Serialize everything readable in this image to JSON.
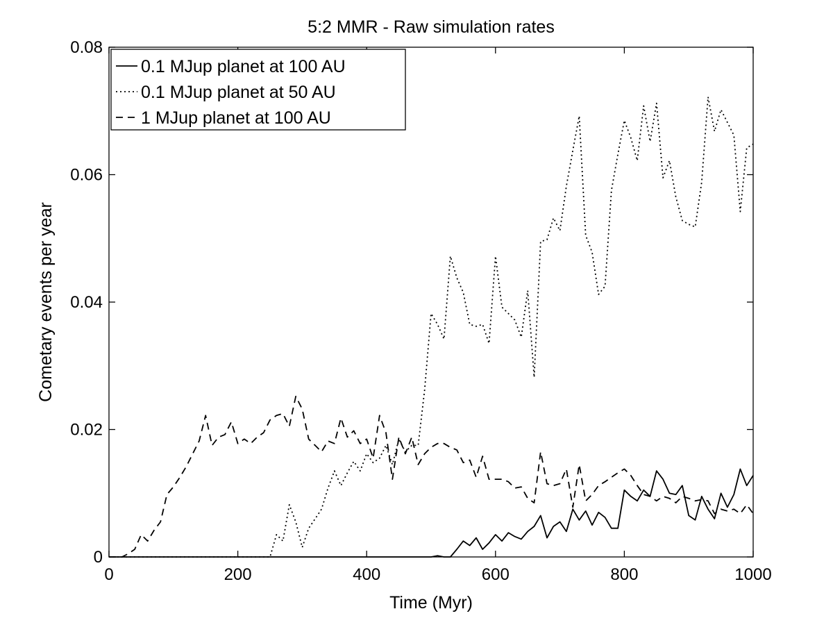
{
  "chart_data": {
    "type": "line",
    "title": "5:2 MMR - Raw simulation rates",
    "xlabel": "Time (Myr)",
    "ylabel": "Cometary events per year",
    "xlim": [
      0,
      1000
    ],
    "ylim": [
      0,
      0.08
    ],
    "xticks": [
      0,
      200,
      400,
      600,
      800,
      1000
    ],
    "xtick_labels": [
      "0",
      "200",
      "400",
      "600",
      "800",
      "1000"
    ],
    "yticks": [
      0,
      0.02,
      0.04,
      0.06,
      0.08
    ],
    "ytick_labels": [
      "0",
      "0.02",
      "0.04",
      "0.06",
      "0.08"
    ],
    "grid": false,
    "legend_position": "top-left",
    "colors": {
      "line": "#000000",
      "background": "#ffffff"
    },
    "series": [
      {
        "name": "0.1 MJup planet at 100 AU",
        "style": "solid",
        "x": [
          0,
          500,
          510,
          520,
          530,
          540,
          550,
          560,
          570,
          580,
          590,
          600,
          610,
          620,
          630,
          640,
          650,
          660,
          670,
          680,
          690,
          700,
          710,
          720,
          730,
          740,
          750,
          760,
          770,
          780,
          790,
          800,
          810,
          820,
          830,
          840,
          850,
          860,
          870,
          880,
          890,
          900,
          910,
          920,
          930,
          940,
          950,
          960,
          970,
          980,
          990,
          1000
        ],
        "values": [
          0,
          0,
          0.0002,
          0,
          0,
          0.0012,
          0.0025,
          0.0018,
          0.003,
          0.0012,
          0.0022,
          0.0035,
          0.0025,
          0.0038,
          0.0032,
          0.0028,
          0.004,
          0.0048,
          0.0065,
          0.003,
          0.0048,
          0.0055,
          0.004,
          0.0075,
          0.0058,
          0.0072,
          0.005,
          0.007,
          0.0062,
          0.0045,
          0.0045,
          0.0105,
          0.0095,
          0.0088,
          0.0105,
          0.0095,
          0.0135,
          0.0122,
          0.01,
          0.0098,
          0.0112,
          0.0065,
          0.0058,
          0.0095,
          0.0075,
          0.006,
          0.01,
          0.0078,
          0.0098,
          0.0138,
          0.0112,
          0.0128
        ]
      },
      {
        "name": "0.1 MJup planet at 50 AU",
        "style": "dotted",
        "x": [
          0,
          250,
          260,
          270,
          280,
          290,
          300,
          310,
          320,
          330,
          340,
          350,
          360,
          370,
          380,
          390,
          400,
          410,
          420,
          430,
          440,
          450,
          460,
          470,
          480,
          490,
          500,
          510,
          520,
          530,
          540,
          550,
          560,
          570,
          580,
          590,
          600,
          610,
          620,
          630,
          640,
          650,
          660,
          670,
          680,
          690,
          700,
          710,
          720,
          730,
          740,
          750,
          760,
          770,
          780,
          790,
          800,
          810,
          820,
          830,
          840,
          850,
          860,
          870,
          880,
          890,
          900,
          910,
          920,
          930,
          940,
          950,
          960,
          970,
          980,
          990,
          1000
        ],
        "values": [
          0,
          0,
          0.0035,
          0.0025,
          0.0082,
          0.0055,
          0.0015,
          0.0045,
          0.006,
          0.0075,
          0.0108,
          0.0135,
          0.0112,
          0.0132,
          0.015,
          0.0135,
          0.0162,
          0.0148,
          0.0155,
          0.0175,
          0.0145,
          0.0185,
          0.0165,
          0.0175,
          0.0175,
          0.0262,
          0.0382,
          0.0365,
          0.0342,
          0.0472,
          0.0438,
          0.0415,
          0.0365,
          0.0362,
          0.0365,
          0.0335,
          0.0472,
          0.0392,
          0.0382,
          0.0372,
          0.0345,
          0.0418,
          0.0282,
          0.0495,
          0.0498,
          0.0532,
          0.0512,
          0.0582,
          0.0638,
          0.0692,
          0.0505,
          0.0478,
          0.0412,
          0.0425,
          0.0575,
          0.0632,
          0.0685,
          0.0658,
          0.0622,
          0.0708,
          0.0652,
          0.0712,
          0.0595,
          0.0622,
          0.0565,
          0.0528,
          0.0522,
          0.0518,
          0.0588,
          0.0722,
          0.0668,
          0.0702,
          0.0682,
          0.0662,
          0.0542,
          0.0642,
          0.0648
        ]
      },
      {
        "name": "1 MJup planet at 100 AU",
        "style": "dashed",
        "x": [
          0,
          20,
          30,
          40,
          50,
          60,
          70,
          80,
          90,
          100,
          110,
          120,
          130,
          140,
          150,
          160,
          170,
          180,
          190,
          200,
          210,
          220,
          230,
          240,
          250,
          260,
          270,
          280,
          290,
          300,
          310,
          320,
          330,
          340,
          350,
          360,
          370,
          380,
          390,
          400,
          410,
          420,
          430,
          440,
          450,
          460,
          470,
          480,
          490,
          500,
          510,
          520,
          530,
          540,
          550,
          560,
          570,
          580,
          590,
          600,
          610,
          620,
          630,
          640,
          650,
          660,
          670,
          680,
          690,
          700,
          710,
          720,
          730,
          740,
          750,
          760,
          770,
          780,
          790,
          800,
          810,
          820,
          830,
          840,
          850,
          860,
          870,
          880,
          890,
          900,
          910,
          920,
          930,
          940,
          950,
          960,
          970,
          980,
          990,
          1000
        ],
        "values": [
          0,
          0,
          0.0005,
          0.0012,
          0.0035,
          0.0025,
          0.0042,
          0.0055,
          0.0098,
          0.011,
          0.0125,
          0.0142,
          0.0162,
          0.0182,
          0.0222,
          0.0175,
          0.0188,
          0.0192,
          0.0212,
          0.0178,
          0.0185,
          0.0178,
          0.0188,
          0.0195,
          0.0215,
          0.0222,
          0.0225,
          0.0205,
          0.0252,
          0.0232,
          0.0185,
          0.0175,
          0.0165,
          0.0182,
          0.0178,
          0.0218,
          0.0188,
          0.0198,
          0.0178,
          0.0185,
          0.0155,
          0.0222,
          0.0195,
          0.0122,
          0.0188,
          0.0162,
          0.0188,
          0.0145,
          0.0162,
          0.0172,
          0.0178,
          0.0178,
          0.0172,
          0.0168,
          0.0148,
          0.0152,
          0.0125,
          0.0158,
          0.0122,
          0.0122,
          0.0122,
          0.0118,
          0.0108,
          0.011,
          0.0092,
          0.0085,
          0.0165,
          0.0115,
          0.0112,
          0.0115,
          0.0138,
          0.0078,
          0.0145,
          0.0088,
          0.0098,
          0.0112,
          0.0118,
          0.0125,
          0.0132,
          0.0138,
          0.0128,
          0.0112,
          0.0098,
          0.0095,
          0.0088,
          0.0095,
          0.0092,
          0.0085,
          0.0095,
          0.0092,
          0.0088,
          0.009,
          0.0088,
          0.0068,
          0.0075,
          0.0072,
          0.0075,
          0.0068,
          0.0082,
          0.0068
        ]
      }
    ]
  }
}
